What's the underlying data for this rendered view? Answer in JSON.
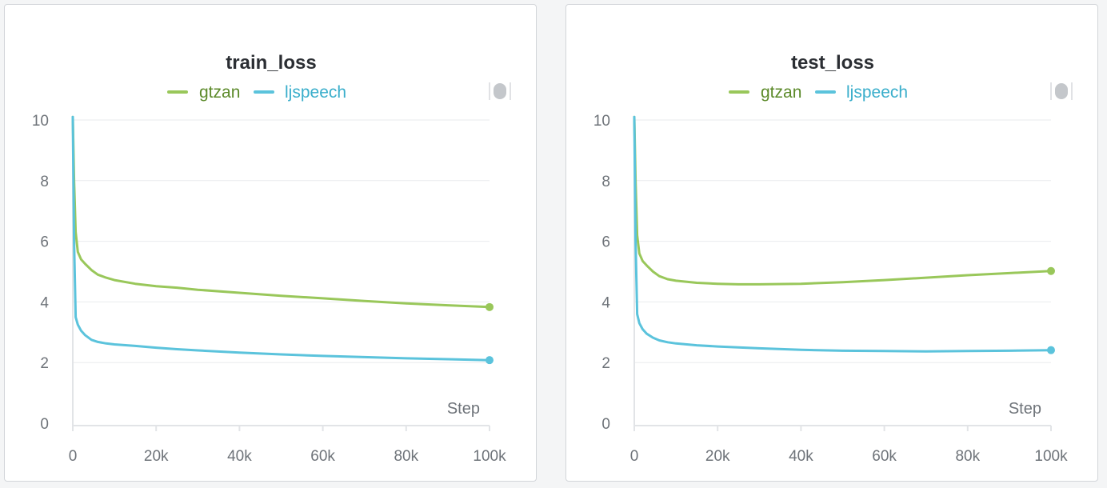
{
  "colors": {
    "gtzan": "#99c75a",
    "gtzan_text": "#5c8a2a",
    "ljspeech": "#5bc3dc",
    "ljspeech_text": "#3aaecb",
    "grid": "#e9ebee",
    "axis": "#e2e4e7"
  },
  "chart_data": [
    {
      "type": "line",
      "title": "train_loss",
      "xlabel": "Step",
      "ylabel": "",
      "xlim": [
        0,
        100000
      ],
      "ylim": [
        0,
        10
      ],
      "x_ticks": [
        0,
        20000,
        40000,
        60000,
        80000,
        100000
      ],
      "x_tick_labels": [
        "0",
        "20k",
        "40k",
        "60k",
        "80k",
        "100k"
      ],
      "y_ticks": [
        0,
        2,
        4,
        6,
        8,
        10
      ],
      "y_tick_labels": [
        "0",
        "2",
        "4",
        "6",
        "8",
        "10"
      ],
      "grid": true,
      "legend_position": "top-center",
      "series": [
        {
          "name": "gtzan",
          "x": [
            0,
            300,
            700,
            1200,
            2000,
            3000,
            4500,
            6000,
            8000,
            10000,
            15000,
            20000,
            25000,
            30000,
            40000,
            50000,
            60000,
            70000,
            80000,
            90000,
            100000
          ],
          "y": [
            10.1,
            8.0,
            6.3,
            5.65,
            5.4,
            5.25,
            5.05,
            4.9,
            4.8,
            4.72,
            4.6,
            4.52,
            4.47,
            4.4,
            4.3,
            4.2,
            4.12,
            4.03,
            3.95,
            3.89,
            3.83
          ]
        },
        {
          "name": "ljspeech",
          "x": [
            0,
            300,
            700,
            1200,
            2000,
            3000,
            4500,
            6000,
            8000,
            10000,
            15000,
            20000,
            25000,
            30000,
            40000,
            50000,
            60000,
            70000,
            80000,
            90000,
            100000
          ],
          "y": [
            10.1,
            6.0,
            3.5,
            3.25,
            3.05,
            2.9,
            2.75,
            2.68,
            2.63,
            2.6,
            2.55,
            2.49,
            2.44,
            2.4,
            2.33,
            2.27,
            2.22,
            2.18,
            2.14,
            2.11,
            2.08
          ]
        }
      ]
    },
    {
      "type": "line",
      "title": "test_loss",
      "xlabel": "Step",
      "ylabel": "",
      "xlim": [
        0,
        100000
      ],
      "ylim": [
        0,
        10
      ],
      "x_ticks": [
        0,
        20000,
        40000,
        60000,
        80000,
        100000
      ],
      "x_tick_labels": [
        "0",
        "20k",
        "40k",
        "60k",
        "80k",
        "100k"
      ],
      "y_ticks": [
        0,
        2,
        4,
        6,
        8,
        10
      ],
      "y_tick_labels": [
        "0",
        "2",
        "4",
        "6",
        "8",
        "10"
      ],
      "grid": true,
      "legend_position": "top-center",
      "series": [
        {
          "name": "gtzan",
          "x": [
            0,
            300,
            700,
            1200,
            2000,
            3000,
            4500,
            6000,
            8000,
            10000,
            15000,
            20000,
            25000,
            30000,
            40000,
            50000,
            60000,
            70000,
            80000,
            90000,
            100000
          ],
          "y": [
            10.1,
            8.0,
            6.2,
            5.6,
            5.35,
            5.2,
            5.0,
            4.85,
            4.75,
            4.7,
            4.63,
            4.6,
            4.58,
            4.58,
            4.6,
            4.65,
            4.72,
            4.8,
            4.88,
            4.95,
            5.02
          ]
        },
        {
          "name": "ljspeech",
          "x": [
            0,
            300,
            700,
            1200,
            2000,
            3000,
            4500,
            6000,
            8000,
            10000,
            15000,
            20000,
            25000,
            30000,
            40000,
            50000,
            60000,
            70000,
            80000,
            90000,
            100000
          ],
          "y": [
            10.1,
            6.0,
            3.6,
            3.3,
            3.1,
            2.95,
            2.82,
            2.73,
            2.67,
            2.63,
            2.57,
            2.53,
            2.5,
            2.47,
            2.42,
            2.39,
            2.38,
            2.37,
            2.38,
            2.39,
            2.41
          ]
        }
      ]
    }
  ]
}
